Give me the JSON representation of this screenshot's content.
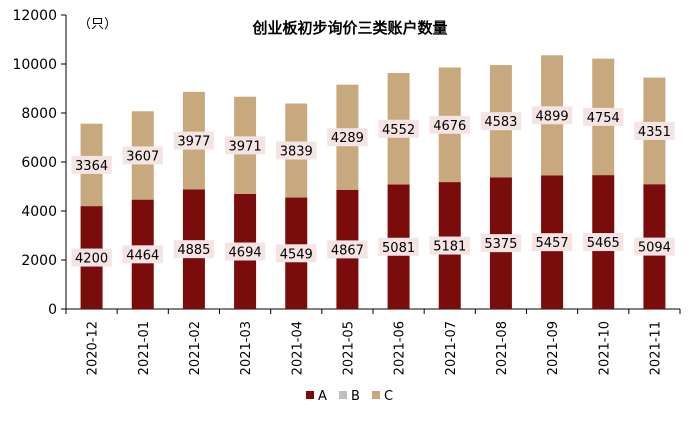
{
  "chart_data": {
    "type": "bar",
    "stacked": true,
    "title": "创业板初步询价三类账户数量",
    "unit_label": "（只）",
    "categories": [
      "2020-12",
      "2021-01",
      "2021-02",
      "2021-03",
      "2021-04",
      "2021-05",
      "2021-06",
      "2021-07",
      "2021-08",
      "2021-09",
      "2021-10",
      "2021-11"
    ],
    "series": [
      {
        "name": "A",
        "color": "#7b0c0c",
        "values": [
          4200,
          4464,
          4885,
          4694,
          4549,
          4867,
          5081,
          5181,
          5375,
          5457,
          5465,
          5094
        ]
      },
      {
        "name": "B",
        "color": "#c0c0c0",
        "values": [
          0,
          0,
          0,
          0,
          0,
          0,
          0,
          0,
          0,
          0,
          0,
          0
        ]
      },
      {
        "name": "C",
        "color": "#c8a97e",
        "values": [
          3364,
          3607,
          3977,
          3971,
          3839,
          4289,
          4552,
          4676,
          4583,
          4899,
          4754,
          4351
        ]
      }
    ],
    "ylim": [
      0,
      12000
    ],
    "yticks": [
      "0",
      "2000",
      "4000",
      "6000",
      "8000",
      "10000",
      "12000"
    ],
    "grid": false,
    "legend_position": "bottom"
  }
}
